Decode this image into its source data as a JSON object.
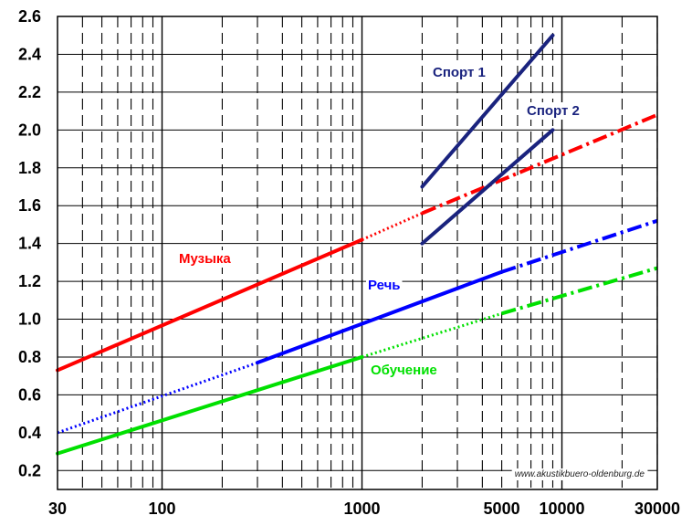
{
  "chart_data": {
    "type": "line",
    "x_scale": "log",
    "xlim": [
      30,
      30000
    ],
    "ylim": [
      0.1,
      2.6
    ],
    "x_tick_labels": [
      "30",
      "100",
      "1000",
      "5000",
      "10000",
      "30000"
    ],
    "x_tick_values": [
      30,
      100,
      1000,
      5000,
      10000,
      30000
    ],
    "y_tick_labels": [
      "0.2",
      "0.4",
      "0.6",
      "0.8",
      "1.0",
      "1.2",
      "1.4",
      "1.6",
      "1.8",
      "2.0",
      "2.2",
      "2.4",
      "2.6"
    ],
    "grid": true,
    "watermark": "www.akustikbuero-oldenburg.de",
    "series": [
      {
        "name": "Музыка",
        "color": "#ff0000",
        "solid": [
          [
            30,
            0.73
          ],
          [
            1000,
            1.42
          ]
        ],
        "dotted": [
          [
            1000,
            1.42
          ],
          [
            2000,
            1.56
          ]
        ],
        "dashed": [
          [
            2000,
            1.56
          ],
          [
            30000,
            2.08
          ]
        ]
      },
      {
        "name": "Речь",
        "color": "#0000ff",
        "dotted": [
          [
            30,
            0.4
          ],
          [
            300,
            0.77
          ]
        ],
        "solid": [
          [
            300,
            0.77
          ],
          [
            5000,
            1.25
          ]
        ],
        "dashed": [
          [
            5000,
            1.25
          ],
          [
            30000,
            1.52
          ]
        ]
      },
      {
        "name": "Обучение",
        "color": "#00e000",
        "solid": [
          [
            30,
            0.29
          ],
          [
            1000,
            0.8
          ]
        ],
        "dotted": [
          [
            1000,
            0.8
          ],
          [
            5000,
            1.03
          ]
        ],
        "dashed": [
          [
            5000,
            1.03
          ],
          [
            30000,
            1.27
          ]
        ]
      },
      {
        "name": "Спорт 1",
        "color": "#1a237e",
        "solid": [
          [
            2000,
            1.7
          ],
          [
            9000,
            2.5
          ]
        ]
      },
      {
        "name": "Спорт 2",
        "color": "#1a237e",
        "solid": [
          [
            2000,
            1.4
          ],
          [
            9000,
            2.0
          ]
        ]
      }
    ]
  }
}
